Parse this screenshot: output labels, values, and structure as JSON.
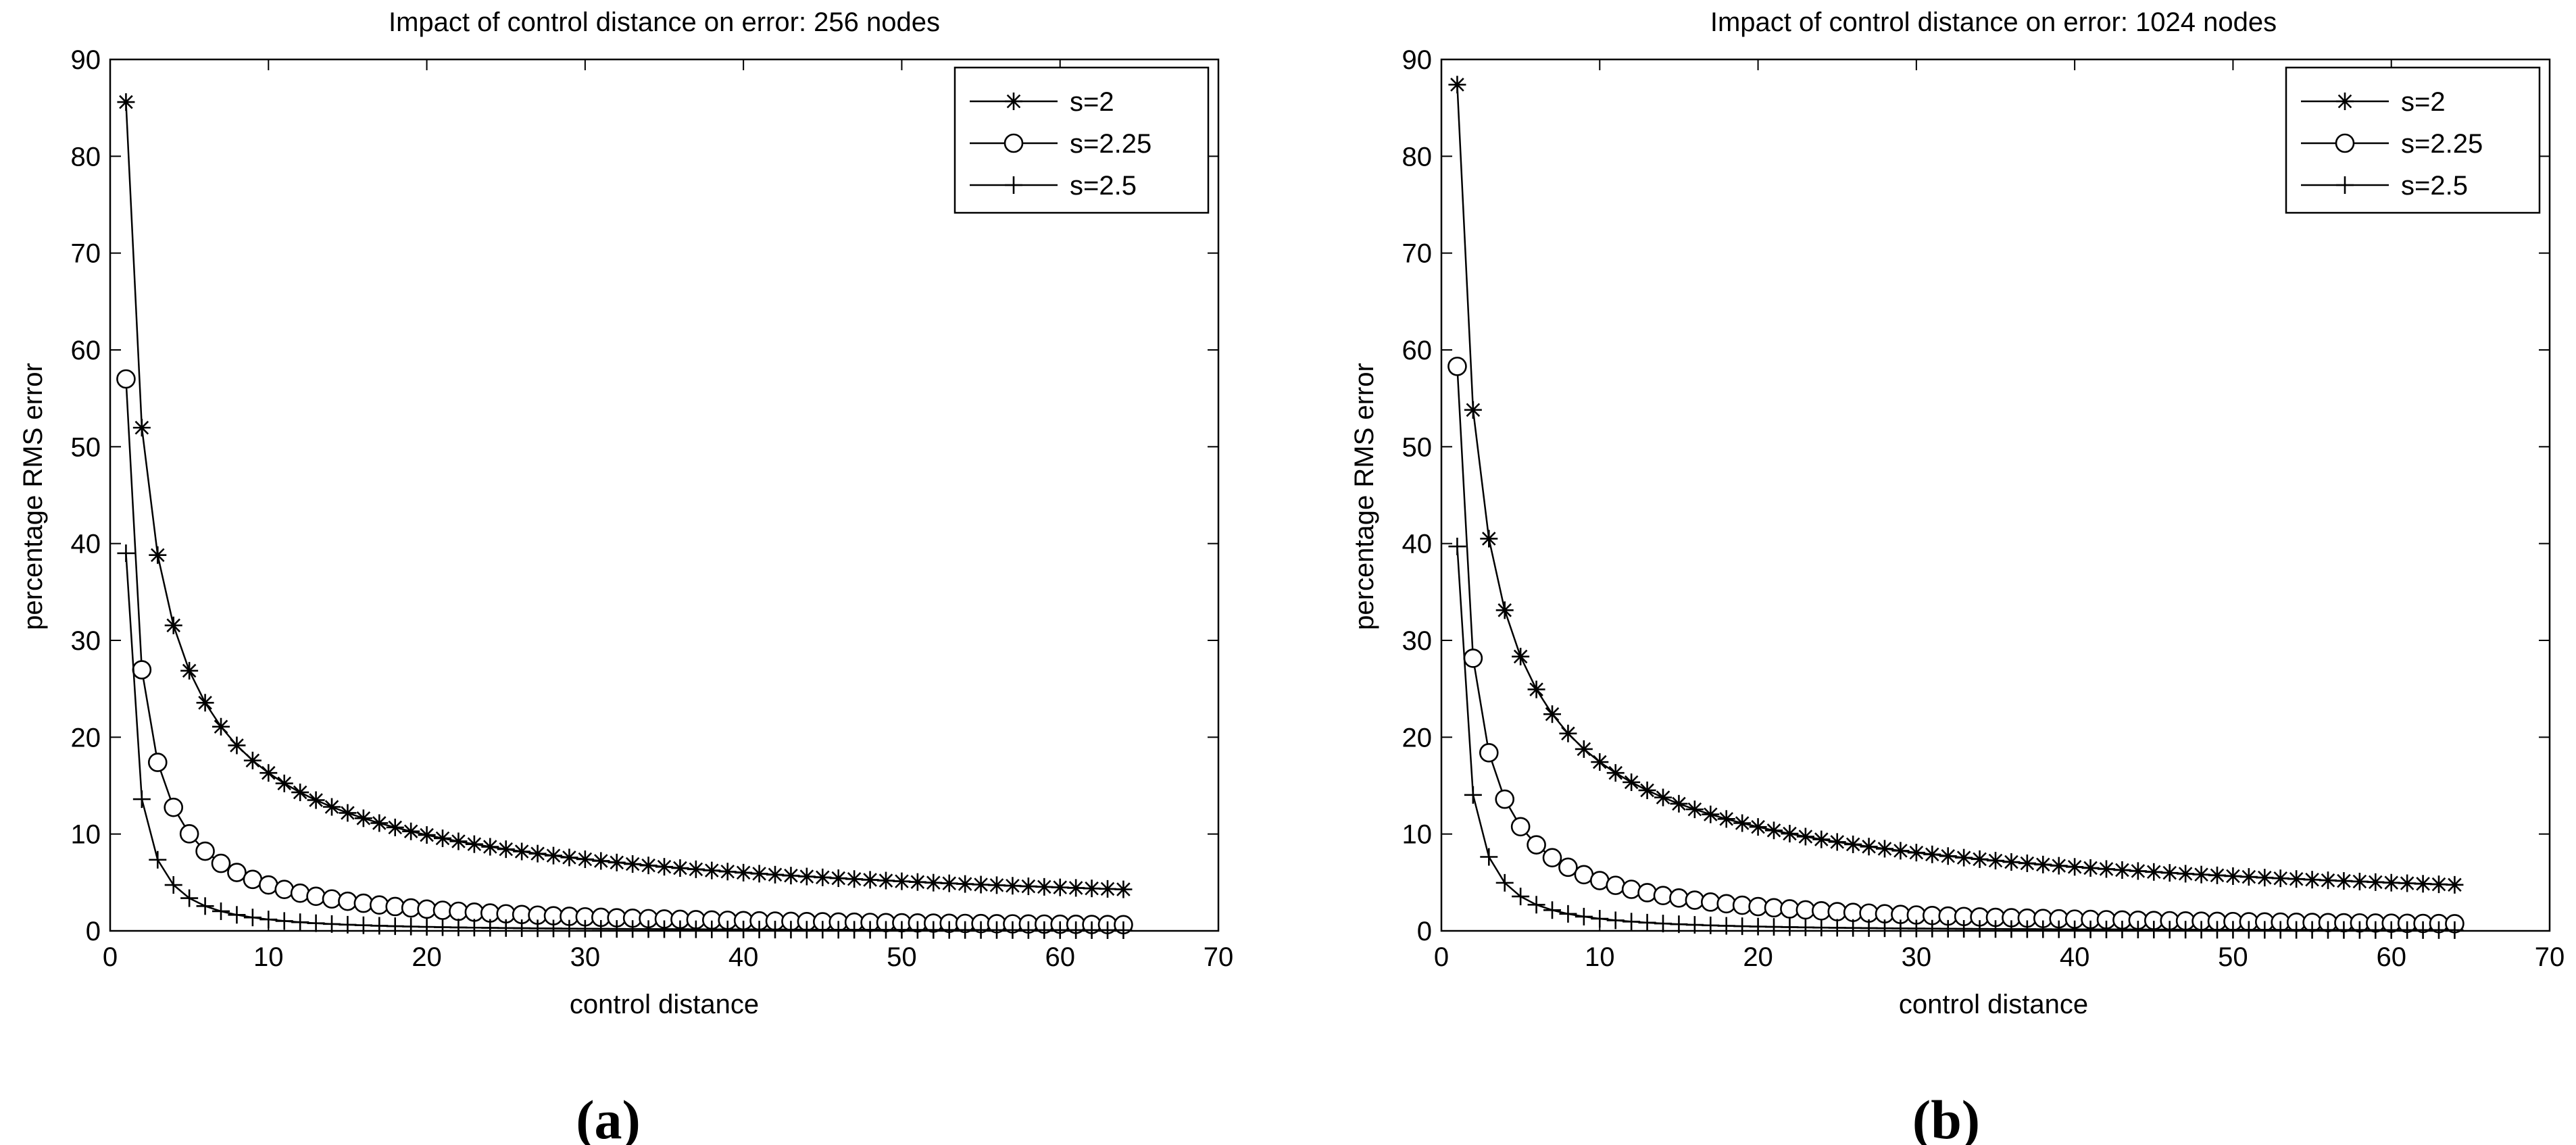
{
  "chart_data": [
    {
      "type": "line",
      "panel_label": "(a)",
      "title": "Impact of control distance on error: 256 nodes",
      "xlabel": "control distance",
      "ylabel": "percentage RMS error",
      "xlim": [
        0,
        70
      ],
      "ylim": [
        0,
        90
      ],
      "xticks": [
        0,
        10,
        20,
        30,
        40,
        50,
        60,
        70
      ],
      "yticks": [
        0,
        10,
        20,
        30,
        40,
        50,
        60,
        70,
        80,
        90
      ],
      "grid": false,
      "legend_position": "top-right",
      "x": "1..64",
      "series": [
        {
          "name": "s=2",
          "marker": "asterisk",
          "y1": 85.6,
          "exponent": 0.72
        },
        {
          "name": "s=2.25",
          "marker": "circle",
          "y1": 57.0,
          "exponent": 1.08
        },
        {
          "name": "s=2.5",
          "marker": "plus",
          "y1": 39.0,
          "exponent": 1.52
        }
      ]
    },
    {
      "type": "line",
      "panel_label": "(b)",
      "title": "Impact of control distance on error: 1024 nodes",
      "xlabel": "control distance",
      "ylabel": "percentage RMS error",
      "xlim": [
        0,
        70
      ],
      "ylim": [
        0,
        90
      ],
      "xticks": [
        0,
        10,
        20,
        30,
        40,
        50,
        60,
        70
      ],
      "yticks": [
        0,
        10,
        20,
        30,
        40,
        50,
        60,
        70,
        80,
        90
      ],
      "grid": false,
      "legend_position": "top-right",
      "x": "1..64",
      "series": [
        {
          "name": "s=2",
          "marker": "asterisk",
          "y1": 87.4,
          "exponent": 0.7
        },
        {
          "name": "s=2.25",
          "marker": "circle",
          "y1": 58.3,
          "exponent": 1.05
        },
        {
          "name": "s=2.5",
          "marker": "plus",
          "y1": 39.7,
          "exponent": 1.5
        }
      ]
    }
  ]
}
